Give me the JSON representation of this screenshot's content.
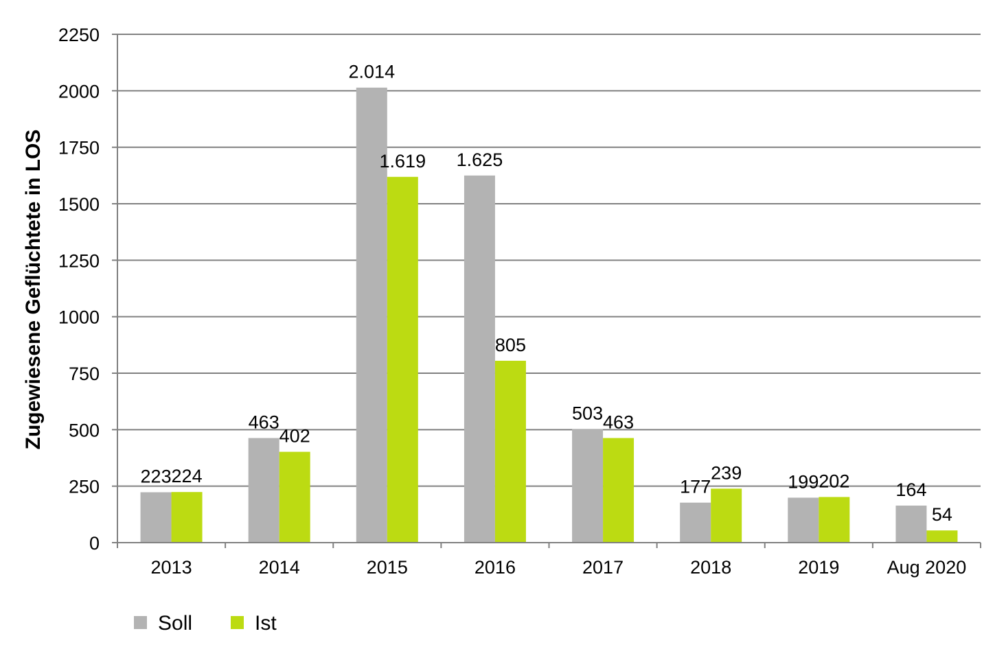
{
  "chart_data": {
    "type": "bar",
    "title": "",
    "xlabel": "",
    "ylabel": "Zugewiesene Geflüchtete in LOS",
    "categories": [
      "2013",
      "2014",
      "2015",
      "2016",
      "2017",
      "2018",
      "2019",
      "Aug 2020"
    ],
    "series": [
      {
        "name": "Soll",
        "color": "#b3b3b3",
        "values": [
          223,
          463,
          2014,
          1625,
          503,
          177,
          199,
          164
        ],
        "labels": [
          "223",
          "463",
          "2.014",
          "1.625",
          "503",
          "177",
          "199",
          "164"
        ]
      },
      {
        "name": "Ist",
        "color": "#bcdb12",
        "values": [
          224,
          402,
          1619,
          805,
          463,
          239,
          202,
          54
        ],
        "labels": [
          "224",
          "402",
          "1.619",
          "805",
          "463",
          "239",
          "202",
          "54"
        ]
      }
    ],
    "ylim": [
      0,
      2250
    ],
    "yticks": [
      0,
      250,
      500,
      750,
      1000,
      1250,
      1500,
      1750,
      2000,
      2250
    ],
    "grid": true,
    "gridcolor": "#808080",
    "legend_position": "bottom-left"
  }
}
